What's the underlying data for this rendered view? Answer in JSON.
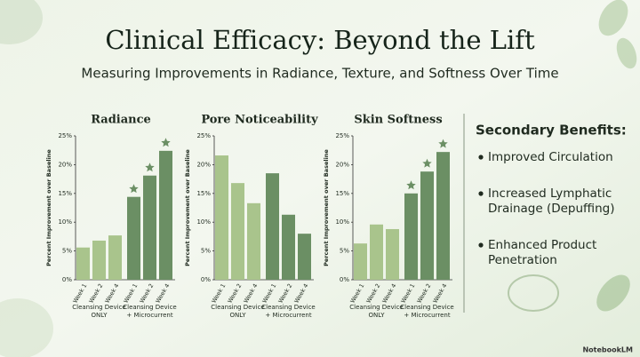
{
  "title": "Clinical Efficacy: Beyond the Lift",
  "subtitle": "Measuring Improvements in Radiance, Texture, and Softness Over Time",
  "side_panel": {
    "heading": "Secondary Benefits:",
    "items": [
      [
        "Improved Circulation"
      ],
      [
        "Increased Lymphatic",
        "Drainage (Depuffing)"
      ],
      [
        "Enhanced Product",
        "Penetration"
      ]
    ]
  },
  "brand": "NotebookLM",
  "chart_data": [
    {
      "type": "bar",
      "title": "Radiance",
      "ylabel": "Percent Improvement over Baseline",
      "categories": [
        "Week 1",
        "Week 2",
        "Week 4",
        "Week 1",
        "Week 2",
        "Week 4"
      ],
      "groups": [
        [
          "Cleansing Device",
          "ONLY"
        ],
        [
          "Cleansing Device",
          "+ Microcurrent"
        ]
      ],
      "values": [
        5.6,
        6.8,
        7.7,
        14.4,
        18.1,
        22.4
      ],
      "colors": [
        "#a9c48c",
        "#a9c48c",
        "#a9c48c",
        "#6b8f64",
        "#6b8f64",
        "#6b8f64"
      ],
      "highlight": [
        false,
        false,
        false,
        true,
        true,
        true
      ],
      "ylim": [
        0,
        25
      ],
      "yticks": [
        {
          "value": 0,
          "label": "0%"
        },
        {
          "value": 5,
          "label": "5%"
        },
        {
          "value": 10,
          "label": "10%"
        },
        {
          "value": 15,
          "label": "15%"
        },
        {
          "value": 20,
          "label": "20%"
        },
        {
          "value": 25,
          "label": "25%"
        }
      ]
    },
    {
      "type": "bar",
      "title": "Pore Noticeability",
      "ylabel": "Percent Improvement over Baseline",
      "categories": [
        "Week 1",
        "Week 2",
        "Week 4",
        "Week 1",
        "Week 2",
        "Week 4"
      ],
      "groups": [
        [
          "Cleansing Device",
          "ONLY"
        ],
        [
          "Cleansing Device",
          "+ Microcurrent"
        ]
      ],
      "values": [
        21.6,
        16.8,
        13.3,
        18.5,
        11.3,
        8.0
      ],
      "colors": [
        "#a9c48c",
        "#a9c48c",
        "#a9c48c",
        "#6b8f64",
        "#6b8f64",
        "#6b8f64"
      ],
      "highlight": [
        false,
        false,
        false,
        false,
        false,
        false
      ],
      "ylim": [
        0,
        25
      ],
      "yticks": [
        {
          "value": 0,
          "label": "0%"
        },
        {
          "value": 5,
          "label": "5%"
        },
        {
          "value": 10,
          "label": "10%"
        },
        {
          "value": 15,
          "label": "15%"
        },
        {
          "value": 20,
          "label": "20%"
        },
        {
          "value": 25,
          "label": "25%"
        }
      ]
    },
    {
      "type": "bar",
      "title": "Skin Softness",
      "ylabel": "Percent Improvement over Baseline",
      "categories": [
        "Week 1",
        "Week 2",
        "Week 4",
        "Week 1",
        "Week 2",
        "Week 4"
      ],
      "groups": [
        [
          "Cleansing Device",
          "ONLY"
        ],
        [
          "Cleansing Device",
          "+ Microcurrent"
        ]
      ],
      "values": [
        6.3,
        9.6,
        8.8,
        15.0,
        18.8,
        22.2
      ],
      "colors": [
        "#a9c48c",
        "#a9c48c",
        "#a9c48c",
        "#6b8f64",
        "#6b8f64",
        "#6b8f64"
      ],
      "highlight": [
        false,
        false,
        false,
        true,
        true,
        true
      ],
      "ylim": [
        0,
        25
      ],
      "yticks": [
        {
          "value": 0,
          "label": "0%"
        },
        {
          "value": 5,
          "label": "5%"
        },
        {
          "value": 10,
          "label": "10%"
        },
        {
          "value": 15,
          "label": "15%"
        },
        {
          "value": 20,
          "label": "20%"
        },
        {
          "value": 25,
          "label": "25%"
        }
      ]
    }
  ]
}
